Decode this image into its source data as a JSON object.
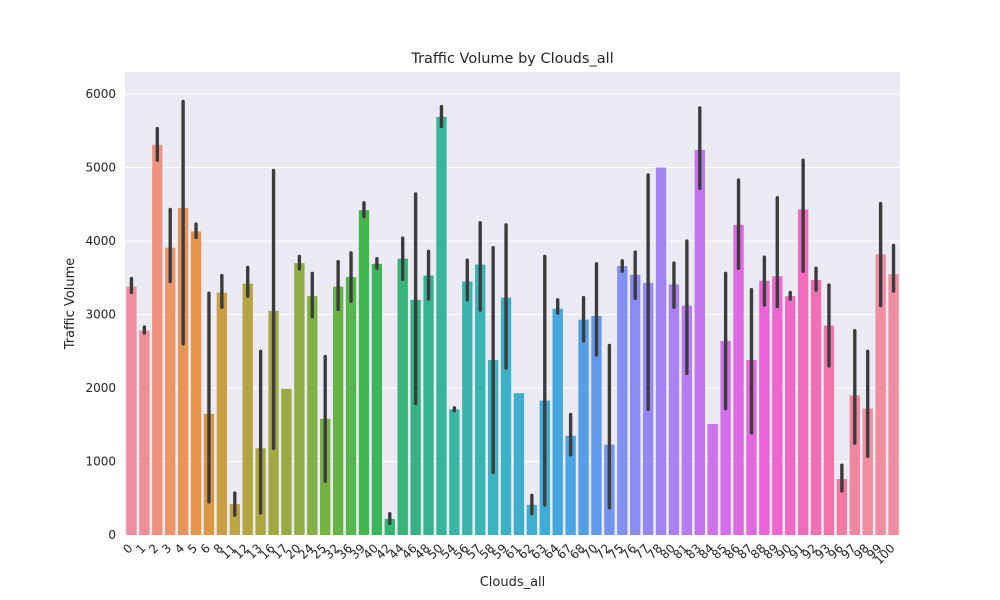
{
  "chart_data": {
    "type": "bar",
    "title": "Traffic Volume by Clouds_all",
    "xlabel": "Clouds_all",
    "ylabel": "Traffic Volume",
    "ylim": [
      0,
      6300
    ],
    "yticks": [
      0,
      1000,
      2000,
      3000,
      4000,
      5000,
      6000
    ],
    "grid": true,
    "legend": "none",
    "error_bars": true,
    "categories": [
      "0",
      "1",
      "2",
      "3",
      "4",
      "5",
      "6",
      "8",
      "11",
      "12",
      "13",
      "16",
      "17",
      "20",
      "24",
      "25",
      "32",
      "36",
      "39",
      "40",
      "42",
      "44",
      "46",
      "48",
      "50",
      "54",
      "56",
      "57",
      "58",
      "59",
      "61",
      "62",
      "63",
      "64",
      "67",
      "68",
      "70",
      "72",
      "75",
      "76",
      "77",
      "78",
      "80",
      "81",
      "83",
      "84",
      "85",
      "86",
      "87",
      "88",
      "89",
      "90",
      "91",
      "92",
      "93",
      "96",
      "97",
      "98",
      "99",
      "100"
    ],
    "values": [
      3380,
      2780,
      5310,
      3910,
      4450,
      4130,
      1650,
      3300,
      420,
      3420,
      1180,
      3050,
      1990,
      3700,
      3250,
      1580,
      3380,
      3510,
      4420,
      3690,
      220,
      3760,
      3200,
      3530,
      5690,
      1710,
      3450,
      3680,
      2380,
      3230,
      1930,
      410,
      1830,
      3080,
      1350,
      2930,
      2980,
      1230,
      3660,
      3540,
      3430,
      5000,
      3410,
      3120,
      5240,
      1510,
      2640,
      4220,
      2380,
      3460,
      3520,
      3250,
      4430,
      3470,
      2850,
      760,
      1900,
      1720,
      3820,
      3550
    ],
    "error_low": [
      3300,
      2750,
      5100,
      3450,
      2600,
      4050,
      450,
      3100,
      270,
      3250,
      300,
      1180,
      1990,
      3620,
      2970,
      730,
      3070,
      3180,
      4330,
      3630,
      160,
      3480,
      1790,
      3210,
      5560,
      1690,
      3200,
      3060,
      850,
      2270,
      1930,
      290,
      410,
      3020,
      1090,
      2640,
      2450,
      370,
      3590,
      3220,
      1710,
      5000,
      3100,
      2200,
      4720,
      1510,
      1720,
      3630,
      1390,
      3130,
      3110,
      3210,
      3590,
      3330,
      2300,
      600,
      1250,
      1070,
      3120,
      3320
    ],
    "error_high": [
      3490,
      2830,
      5530,
      4430,
      5900,
      4230,
      3290,
      3530,
      570,
      3640,
      2500,
      4960,
      1990,
      3790,
      3560,
      2430,
      3720,
      3840,
      4520,
      3760,
      290,
      4040,
      4640,
      3860,
      5830,
      1730,
      3740,
      4250,
      3910,
      4220,
      1930,
      540,
      3790,
      3200,
      1640,
      3230,
      3690,
      2580,
      3730,
      3850,
      4900,
      5000,
      3700,
      4000,
      5810,
      1510,
      3560,
      4830,
      3340,
      3780,
      4590,
      3300,
      5100,
      3630,
      3400,
      950,
      2780,
      2500,
      4510,
      3940
    ],
    "colors": [
      "#f08ea0",
      "#f08e98",
      "#f0907f",
      "#ec9568",
      "#e9955a",
      "#e69448",
      "#d99846",
      "#c99f45",
      "#bda444",
      "#b5a542",
      "#aaa742",
      "#a0a942",
      "#98ab42",
      "#8fad42",
      "#83b043",
      "#74b243",
      "#66b446",
      "#55b64b",
      "#43b74d",
      "#3bb65e",
      "#38b470",
      "#36b47a",
      "#36b484",
      "#37b48f",
      "#37b49a",
      "#39b6a4",
      "#3ab5ad",
      "#3bb4b5",
      "#3cb3bd",
      "#3db1c4",
      "#3eafca",
      "#40add1",
      "#41abd8",
      "#44a8de",
      "#4ba5e4",
      "#559fe9",
      "#6299ec",
      "#7494ef",
      "#8190f1",
      "#8b8cf3",
      "#9688f4",
      "#a084f4",
      "#ab80f3",
      "#b77bf2",
      "#c176ef",
      "#cb72ec",
      "#d36ee8",
      "#dc6ae3",
      "#e367dd",
      "#ea64d7",
      "#ef66cf",
      "#f168c6",
      "#f26bbd",
      "#f26fb4",
      "#f274aa",
      "#f17ba1",
      "#f0869d",
      "#f08ea0",
      "#f08ea0",
      "#f08ea0"
    ]
  }
}
